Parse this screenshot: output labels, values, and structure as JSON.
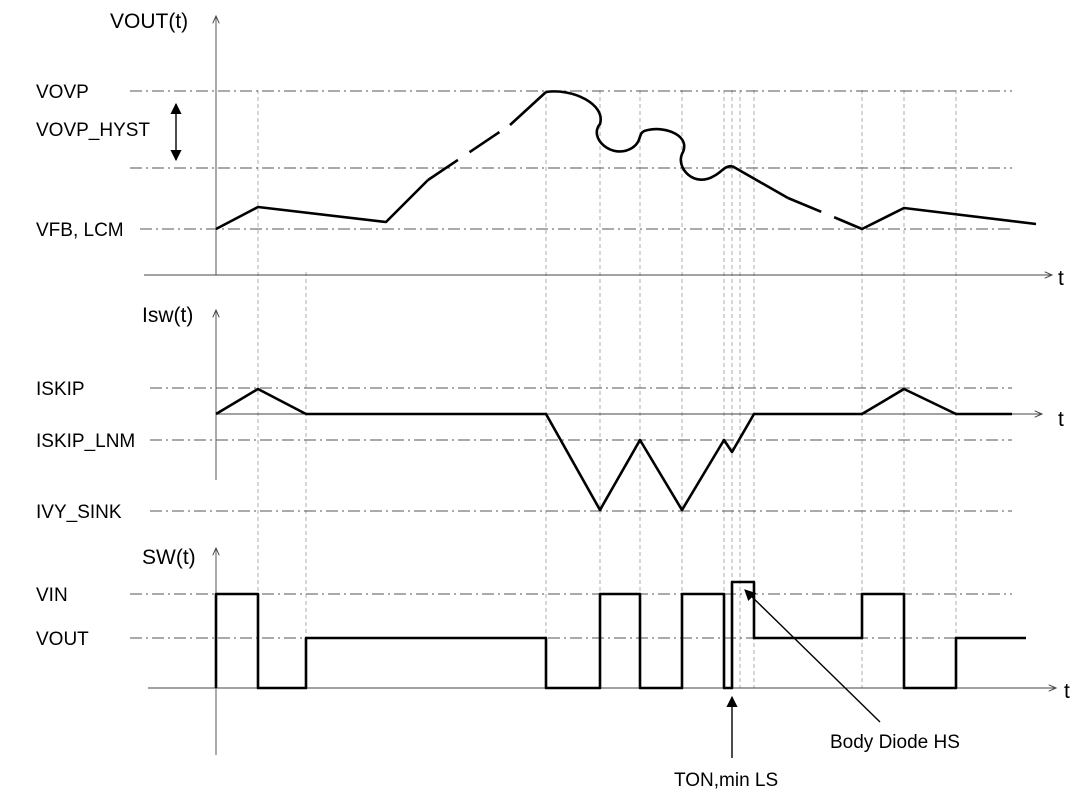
{
  "panels": {
    "vout": {
      "axis_label": "VOUT(t)",
      "time_label": "t",
      "levels": [
        "VOVP",
        "VOVP_HYST",
        "VFB, LCM"
      ]
    },
    "isw": {
      "axis_label": "Isw(t)",
      "time_label": "t",
      "levels": [
        "ISKIP",
        "ISKIP_LNM",
        "IVY_SINK"
      ]
    },
    "sw": {
      "axis_label": "SW(t)",
      "time_label": "t",
      "levels": [
        "VIN",
        "VOUT"
      ]
    }
  },
  "annotations": {
    "body_diode": "Body Diode HS",
    "ton_min": "TON,min LS"
  },
  "colors": {
    "waveform": "#000000",
    "reference_lines": "#555555",
    "grid": "#999999"
  }
}
